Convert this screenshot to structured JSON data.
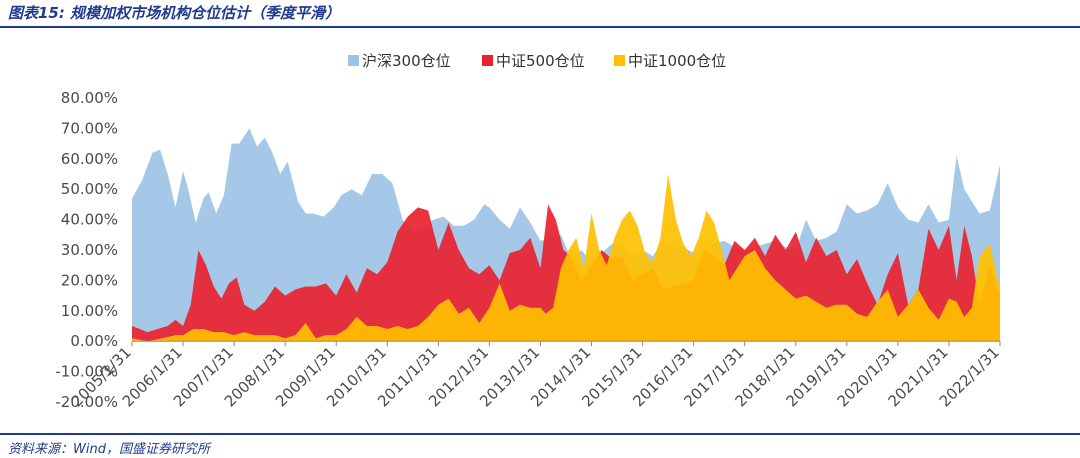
{
  "header": {
    "title": "图表15: 规模加权市场机构仓位估计（季度平滑）"
  },
  "footer": {
    "source": "资料来源：Wind，国盛证券研究所"
  },
  "colors": {
    "accent": "#1f3a8f",
    "hs300": "#9dc3e6",
    "zz500": "#e8222f",
    "zz1000": "#ffc000"
  },
  "chart_data": {
    "type": "area",
    "title": "",
    "xlabel": "",
    "ylabel": "",
    "legend_position": "top-center",
    "ylim": [
      -0.2,
      0.8
    ],
    "y_ticks": [
      "80.00%",
      "70.00%",
      "60.00%",
      "50.00%",
      "40.00%",
      "30.00%",
      "20.00%",
      "10.00%",
      "0.00%",
      "-10.00%",
      "-20.00%"
    ],
    "y_tick_values": [
      0.8,
      0.7,
      0.6,
      0.5,
      0.4,
      0.3,
      0.2,
      0.1,
      0.0,
      -0.1,
      -0.2
    ],
    "x_ticks": [
      "2005/1/31",
      "2006/1/31",
      "2007/1/31",
      "2008/1/31",
      "2009/1/31",
      "2010/1/31",
      "2011/1/31",
      "2012/1/31",
      "2013/1/31",
      "2014/1/31",
      "2015/1/31",
      "2016/1/31",
      "2017/1/31",
      "2018/1/31",
      "2019/1/31",
      "2020/1/31",
      "2021/1/31",
      "2022/1/31"
    ],
    "x_range_years": [
      2005.0,
      2022.0
    ],
    "series": [
      {
        "name": "沪深300仓位",
        "color": "#9dc3e6",
        "x": [
          2005.0,
          2005.2,
          2005.4,
          2005.55,
          2005.7,
          2005.85,
          2006.0,
          2006.1,
          2006.25,
          2006.4,
          2006.5,
          2006.65,
          2006.8,
          2006.95,
          2007.1,
          2007.3,
          2007.45,
          2007.6,
          2007.75,
          2007.9,
          2008.05,
          2008.25,
          2008.4,
          2008.55,
          2008.75,
          2008.95,
          2009.1,
          2009.3,
          2009.5,
          2009.7,
          2009.9,
          2010.1,
          2010.3,
          2010.5,
          2010.7,
          2010.9,
          2011.1,
          2011.3,
          2011.5,
          2011.7,
          2011.9,
          2012.0,
          2012.2,
          2012.4,
          2012.6,
          2012.8,
          2013.0,
          2013.2,
          2013.4,
          2013.6,
          2013.8,
          2014.0,
          2014.2,
          2014.4,
          2014.6,
          2014.8,
          2015.0,
          2015.2,
          2015.4,
          2015.6,
          2015.8,
          2016.0,
          2016.2,
          2016.4,
          2016.6,
          2016.8,
          2017.0,
          2017.2,
          2017.4,
          2017.6,
          2017.8,
          2018.0,
          2018.2,
          2018.4,
          2018.6,
          2018.8,
          2019.0,
          2019.2,
          2019.4,
          2019.6,
          2019.8,
          2020.0,
          2020.2,
          2020.4,
          2020.6,
          2020.8,
          2021.0,
          2021.15,
          2021.3,
          2021.45,
          2021.6,
          2021.8,
          2022.0
        ],
        "values": [
          0.47,
          0.53,
          0.62,
          0.63,
          0.55,
          0.44,
          0.56,
          0.5,
          0.39,
          0.47,
          0.49,
          0.42,
          0.48,
          0.65,
          0.65,
          0.7,
          0.64,
          0.67,
          0.62,
          0.55,
          0.59,
          0.46,
          0.42,
          0.42,
          0.41,
          0.44,
          0.48,
          0.5,
          0.48,
          0.55,
          0.55,
          0.52,
          0.4,
          0.36,
          0.37,
          0.4,
          0.41,
          0.38,
          0.38,
          0.4,
          0.45,
          0.44,
          0.4,
          0.37,
          0.44,
          0.39,
          0.33,
          0.34,
          0.35,
          0.27,
          0.3,
          0.26,
          0.29,
          0.32,
          0.31,
          0.28,
          0.3,
          0.28,
          0.33,
          0.31,
          0.31,
          0.29,
          0.3,
          0.32,
          0.33,
          0.31,
          0.3,
          0.31,
          0.32,
          0.33,
          0.31,
          0.3,
          0.4,
          0.33,
          0.34,
          0.36,
          0.45,
          0.42,
          0.43,
          0.45,
          0.52,
          0.44,
          0.4,
          0.39,
          0.45,
          0.39,
          0.4,
          0.61,
          0.5,
          0.46,
          0.42,
          0.43,
          0.58
        ]
      },
      {
        "name": "中证500仓位",
        "color": "#e8222f",
        "x": [
          2005.0,
          2005.15,
          2005.3,
          2005.5,
          2005.7,
          2005.85,
          2006.0,
          2006.15,
          2006.3,
          2006.45,
          2006.6,
          2006.75,
          2006.9,
          2007.05,
          2007.2,
          2007.4,
          2007.6,
          2007.8,
          2008.0,
          2008.2,
          2008.4,
          2008.6,
          2008.8,
          2009.0,
          2009.2,
          2009.4,
          2009.6,
          2009.8,
          2010.0,
          2010.2,
          2010.4,
          2010.6,
          2010.8,
          2011.0,
          2011.2,
          2011.4,
          2011.6,
          2011.8,
          2012.0,
          2012.2,
          2012.4,
          2012.6,
          2012.8,
          2013.0,
          2013.15,
          2013.3,
          2013.45,
          2013.6,
          2013.8,
          2014.0,
          2014.2,
          2014.4,
          2014.6,
          2014.8,
          2015.0,
          2015.2,
          2015.4,
          2015.6,
          2015.8,
          2016.0,
          2016.2,
          2016.4,
          2016.6,
          2016.8,
          2017.0,
          2017.2,
          2017.4,
          2017.6,
          2017.8,
          2018.0,
          2018.2,
          2018.4,
          2018.6,
          2018.8,
          2019.0,
          2019.2,
          2019.4,
          2019.6,
          2019.8,
          2020.0,
          2020.2,
          2020.4,
          2020.6,
          2020.8,
          2021.0,
          2021.15,
          2021.3,
          2021.45,
          2021.6,
          2021.8,
          2022.0
        ],
        "values": [
          0.05,
          0.04,
          0.03,
          0.04,
          0.05,
          0.07,
          0.05,
          0.12,
          0.3,
          0.25,
          0.18,
          0.14,
          0.19,
          0.21,
          0.12,
          0.1,
          0.13,
          0.18,
          0.15,
          0.17,
          0.18,
          0.18,
          0.19,
          0.15,
          0.22,
          0.16,
          0.24,
          0.22,
          0.26,
          0.36,
          0.41,
          0.44,
          0.43,
          0.3,
          0.39,
          0.3,
          0.24,
          0.22,
          0.25,
          0.2,
          0.29,
          0.3,
          0.34,
          0.24,
          0.45,
          0.4,
          0.3,
          0.28,
          0.2,
          0.25,
          0.3,
          0.27,
          0.28,
          0.2,
          0.22,
          0.24,
          0.17,
          0.18,
          0.19,
          0.2,
          0.3,
          0.28,
          0.25,
          0.33,
          0.3,
          0.34,
          0.28,
          0.35,
          0.3,
          0.36,
          0.26,
          0.34,
          0.28,
          0.3,
          0.22,
          0.27,
          0.19,
          0.12,
          0.22,
          0.29,
          0.12,
          0.17,
          0.37,
          0.3,
          0.38,
          0.2,
          0.38,
          0.28,
          0.12,
          0.25,
          0.15
        ]
      },
      {
        "name": "中证1000仓位",
        "color": "#ffc000",
        "x": [
          2005.0,
          2005.3,
          2005.6,
          2005.85,
          2006.0,
          2006.2,
          2006.4,
          2006.6,
          2006.8,
          2007.0,
          2007.2,
          2007.4,
          2007.6,
          2007.8,
          2008.0,
          2008.2,
          2008.4,
          2008.6,
          2008.8,
          2009.0,
          2009.2,
          2009.4,
          2009.6,
          2009.8,
          2010.0,
          2010.2,
          2010.4,
          2010.6,
          2010.8,
          2011.0,
          2011.2,
          2011.4,
          2011.6,
          2011.8,
          2012.0,
          2012.2,
          2012.4,
          2012.6,
          2012.8,
          2013.0,
          2013.1,
          2013.25,
          2013.4,
          2013.55,
          2013.7,
          2013.85,
          2014.0,
          2014.15,
          2014.3,
          2014.45,
          2014.6,
          2014.75,
          2014.9,
          2015.05,
          2015.2,
          2015.35,
          2015.5,
          2015.65,
          2015.8,
          2015.95,
          2016.1,
          2016.25,
          2016.4,
          2016.55,
          2016.7,
          2016.85,
          2017.0,
          2017.2,
          2017.4,
          2017.6,
          2017.8,
          2018.0,
          2018.2,
          2018.4,
          2018.6,
          2018.8,
          2019.0,
          2019.2,
          2019.4,
          2019.6,
          2019.8,
          2020.0,
          2020.2,
          2020.4,
          2020.6,
          2020.8,
          2021.0,
          2021.15,
          2021.3,
          2021.45,
          2021.6,
          2021.8,
          2022.0
        ],
        "values": [
          0.01,
          0.0,
          0.01,
          0.02,
          0.02,
          0.04,
          0.04,
          0.03,
          0.03,
          0.02,
          0.03,
          0.02,
          0.02,
          0.02,
          0.01,
          0.02,
          0.06,
          0.01,
          0.02,
          0.02,
          0.04,
          0.08,
          0.05,
          0.05,
          0.04,
          0.05,
          0.04,
          0.05,
          0.08,
          0.12,
          0.14,
          0.09,
          0.11,
          0.06,
          0.11,
          0.19,
          0.1,
          0.12,
          0.11,
          0.11,
          0.09,
          0.11,
          0.24,
          0.3,
          0.34,
          0.24,
          0.42,
          0.3,
          0.25,
          0.34,
          0.4,
          0.43,
          0.38,
          0.29,
          0.26,
          0.34,
          0.55,
          0.4,
          0.32,
          0.28,
          0.34,
          0.43,
          0.39,
          0.3,
          0.2,
          0.24,
          0.28,
          0.3,
          0.24,
          0.2,
          0.17,
          0.14,
          0.15,
          0.13,
          0.11,
          0.12,
          0.12,
          0.09,
          0.08,
          0.13,
          0.17,
          0.08,
          0.12,
          0.17,
          0.11,
          0.07,
          0.14,
          0.13,
          0.08,
          0.11,
          0.28,
          0.32,
          0.17
        ]
      }
    ]
  }
}
